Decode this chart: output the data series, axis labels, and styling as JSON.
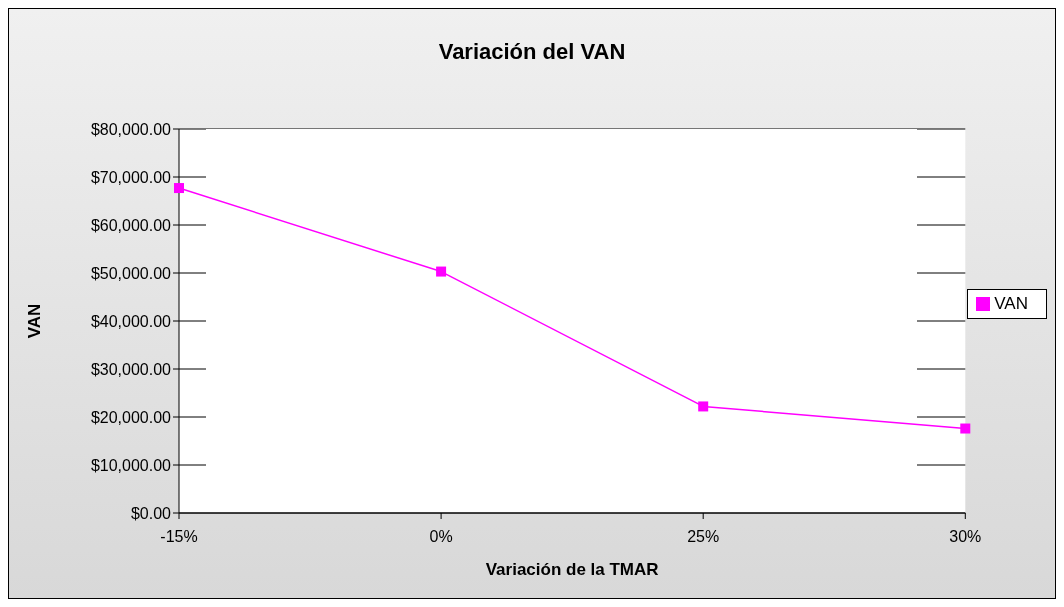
{
  "chart_data": {
    "type": "line",
    "title": "Variación del VAN",
    "xlabel": "Variación de la TMAR",
    "ylabel": "VAN",
    "categories": [
      "-15%",
      "0%",
      "25%",
      "30%"
    ],
    "series": [
      {
        "name": "VAN",
        "color": "#ff00ff",
        "values": [
          67700,
          50300,
          22200,
          17600
        ]
      }
    ],
    "ylim": [
      0,
      80000
    ],
    "yticks": [
      {
        "value": 0,
        "label": "$0.00"
      },
      {
        "value": 10000,
        "label": "$10,000.00"
      },
      {
        "value": 20000,
        "label": "$20,000.00"
      },
      {
        "value": 30000,
        "label": "$30,000.00"
      },
      {
        "value": 40000,
        "label": "$40,000.00"
      },
      {
        "value": 50000,
        "label": "$50,000.00"
      },
      {
        "value": 60000,
        "label": "$60,000.00"
      },
      {
        "value": 70000,
        "label": "$70,000.00"
      },
      {
        "value": 80000,
        "label": "$80,000.00"
      }
    ],
    "grid": "y",
    "legend": "right",
    "marker": "square",
    "line_style": "solid"
  }
}
